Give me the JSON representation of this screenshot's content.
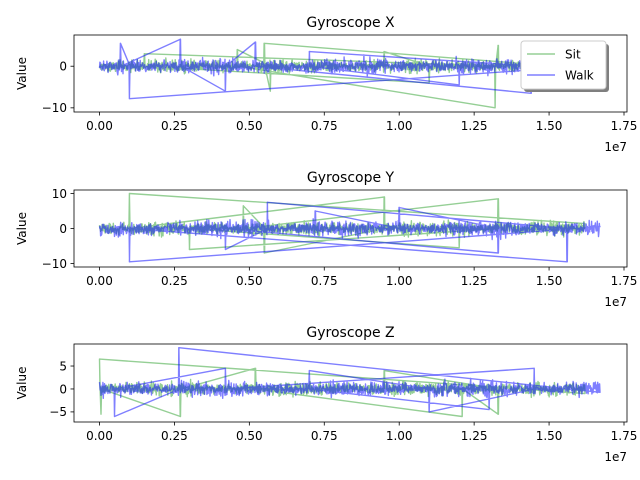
{
  "colors": {
    "sit": "#2ca02c",
    "walk": "#0000ff"
  },
  "chart_data": [
    {
      "type": "line",
      "title": "Gyroscope X",
      "xlabel": "",
      "ylabel": "Value",
      "x_offset_label": "1e7",
      "xlim": [
        -0.085,
        1.76
      ],
      "ylim": [
        -11,
        7.5
      ],
      "x_ticks": [
        "0.00",
        "0.25",
        "0.50",
        "0.75",
        "1.00",
        "1.25",
        "1.50",
        "1.75"
      ],
      "y_ticks": [
        "−10",
        "0"
      ],
      "y_tick_values": [
        -10,
        0
      ],
      "legend": {
        "position": "top-right",
        "entries": [
          "Sit",
          "Walk"
        ]
      },
      "series": [
        {
          "name": "Sit",
          "color": "#2ca02c",
          "x_range": [
            0,
            1.58
          ],
          "base_amp": 1.6,
          "spikes": [
            [
              0.55,
              5.5
            ],
            [
              0.57,
              -6.0
            ],
            [
              0.46,
              4.0
            ],
            [
              1.32,
              -10.0
            ],
            [
              1.33,
              5.0
            ],
            [
              0.15,
              3.0
            ],
            [
              1.1,
              -4.0
            ],
            [
              0.95,
              3.5
            ]
          ]
        },
        {
          "name": "Walk",
          "color": "#0000ff",
          "x_range": [
            0,
            1.62
          ],
          "base_amp": 1.8,
          "spikes": [
            [
              0.1,
              -7.8
            ],
            [
              0.07,
              5.5
            ],
            [
              0.27,
              6.5
            ],
            [
              0.42,
              -6.0
            ],
            [
              0.52,
              5.8
            ],
            [
              1.44,
              -6.5
            ],
            [
              1.45,
              5.0
            ],
            [
              0.7,
              3.5
            ],
            [
              1.2,
              -4.5
            ]
          ]
        }
      ]
    },
    {
      "type": "line",
      "title": "Gyroscope Y",
      "xlabel": "",
      "ylabel": "Value",
      "x_offset_label": "1e7",
      "xlim": [
        -0.085,
        1.76
      ],
      "ylim": [
        -11,
        11
      ],
      "x_ticks": [
        "0.00",
        "0.25",
        "0.50",
        "0.75",
        "1.00",
        "1.25",
        "1.50",
        "1.75"
      ],
      "y_ticks": [
        "−10",
        "0",
        "10"
      ],
      "y_tick_values": [
        -10,
        0,
        10
      ],
      "series": [
        {
          "name": "Sit",
          "color": "#2ca02c",
          "x_range": [
            0,
            1.62
          ],
          "base_amp": 2.0,
          "spikes": [
            [
              0.1,
              10.0
            ],
            [
              0.95,
              9.0
            ],
            [
              0.55,
              -7.0
            ],
            [
              0.48,
              6.5
            ],
            [
              1.33,
              8.5
            ],
            [
              0.3,
              -6.0
            ],
            [
              1.2,
              -5.5
            ]
          ]
        },
        {
          "name": "Walk",
          "color": "#0000ff",
          "x_range": [
            0,
            1.67
          ],
          "base_amp": 2.2,
          "spikes": [
            [
              0.1,
              -9.5
            ],
            [
              1.56,
              -9.5
            ],
            [
              0.56,
              7.5
            ],
            [
              0.42,
              -6.0
            ],
            [
              1.33,
              -7.0
            ],
            [
              1.0,
              6.0
            ],
            [
              0.72,
              5.0
            ]
          ]
        }
      ]
    },
    {
      "type": "line",
      "title": "Gyroscope Z",
      "xlabel": "",
      "ylabel": "Value",
      "x_offset_label": "1e7",
      "xlim": [
        -0.085,
        1.76
      ],
      "ylim": [
        -7.2,
        9.8
      ],
      "x_ticks": [
        "0.00",
        "0.25",
        "0.50",
        "0.75",
        "1.00",
        "1.25",
        "1.50",
        "1.75"
      ],
      "y_ticks": [
        "−5",
        "0",
        "5"
      ],
      "y_tick_values": [
        -5,
        0,
        5
      ],
      "series": [
        {
          "name": "Sit",
          "color": "#2ca02c",
          "x_range": [
            0,
            1.62
          ],
          "base_amp": 1.5,
          "spikes": [
            [
              0.0,
              6.5
            ],
            [
              0.005,
              -5.5
            ],
            [
              0.27,
              -6.0
            ],
            [
              0.52,
              4.5
            ],
            [
              1.21,
              -6.0
            ],
            [
              1.33,
              -5.5
            ],
            [
              0.95,
              4.0
            ]
          ]
        },
        {
          "name": "Walk",
          "color": "#0000ff",
          "x_range": [
            0,
            1.67
          ],
          "base_amp": 1.6,
          "spikes": [
            [
              0.265,
              9.0
            ],
            [
              0.05,
              -6.0
            ],
            [
              0.42,
              4.5
            ],
            [
              1.45,
              4.5
            ],
            [
              1.1,
              -5.0
            ],
            [
              0.7,
              4.0
            ],
            [
              1.3,
              -4.5
            ]
          ]
        }
      ]
    }
  ]
}
